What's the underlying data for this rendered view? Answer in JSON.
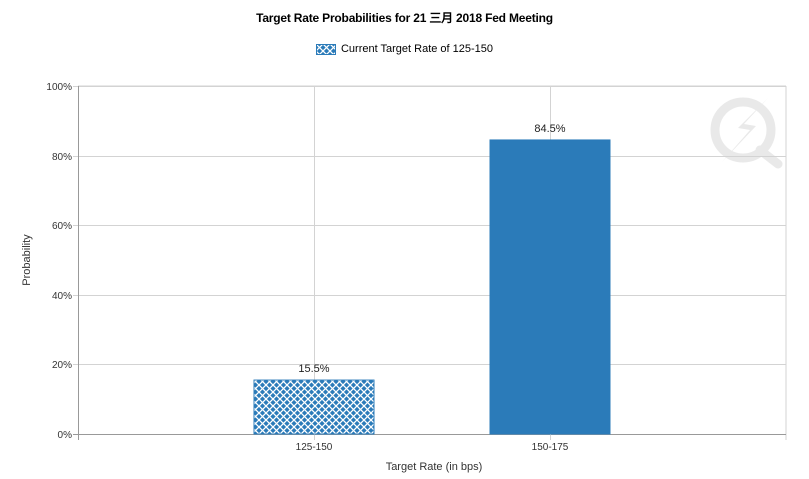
{
  "chart_data": {
    "type": "bar",
    "title": "Target Rate Probabilities for 21 三月 2018 Fed Meeting",
    "xlabel": "Target Rate (in bps)",
    "ylabel": "Probability",
    "categories": [
      "125-150",
      "150-175"
    ],
    "values": [
      15.5,
      84.5
    ],
    "data_labels": [
      "15.5%",
      "84.5%"
    ],
    "ylim": [
      0,
      100
    ],
    "yticks": [
      0,
      20,
      40,
      60,
      80,
      100
    ],
    "ytick_labels": [
      "0%",
      "20%",
      "40%",
      "60%",
      "80%",
      "100%"
    ],
    "grid": true,
    "legend": {
      "position": "top",
      "entries": [
        {
          "label": "Current Target Rate of 125-150",
          "pattern": "crosshatch",
          "color": "#2b7bb9"
        }
      ]
    },
    "bar_styles": [
      "crosshatch",
      "solid"
    ],
    "colors": {
      "bar": "#2b7bb9",
      "hatch": "#ffffff",
      "grid": "#d3d3d3",
      "axis": "#999999"
    }
  }
}
